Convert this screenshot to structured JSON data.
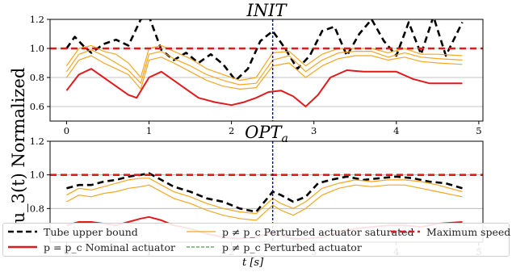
{
  "ylabel": "u_3(t) Normalized",
  "xlabel": "t [s]",
  "legend": [
    {
      "label": "Tube upper bound",
      "color": "#000000",
      "style": "dashed-thick"
    },
    {
      "label": "p = p_c Nominal actuator",
      "color": "#e31a1c",
      "style": "solid-thick"
    },
    {
      "label": "p ≠ p_c Perturbed actuator saturated",
      "color": "#f5a623",
      "style": "solid-thin"
    },
    {
      "label": "p ≠ p_c Perturbed actuator",
      "color": "#1a8a1a",
      "style": "dashed-thin"
    },
    {
      "label": "Maximum speed",
      "color": "#e31a1c",
      "style": "dashed-thick"
    }
  ],
  "chart_data": [
    {
      "type": "line",
      "title": "INIT",
      "xlim": [
        -0.2,
        5.05
      ],
      "ylim": [
        0.5,
        1.2
      ],
      "xticks": [
        0,
        1,
        2,
        3,
        4,
        5
      ],
      "yticks": [
        0.6,
        0.8,
        1.0,
        1.2
      ],
      "grid_y": true,
      "vline_x": 2.5,
      "max_speed": 1.0,
      "series": [
        {
          "name": "Tube upper bound",
          "role": "tube",
          "x": [
            0,
            0.1,
            0.2,
            0.3,
            0.45,
            0.6,
            0.75,
            0.9,
            1.0,
            1.15,
            1.3,
            1.45,
            1.6,
            1.75,
            1.9,
            2.05,
            2.2,
            2.35,
            2.5,
            2.65,
            2.8,
            2.95,
            3.1,
            3.25,
            3.4,
            3.55,
            3.7,
            3.85,
            4.0,
            4.15,
            4.3,
            4.45,
            4.6,
            4.8
          ],
          "y": [
            1.0,
            1.08,
            1.02,
            0.97,
            1.03,
            1.06,
            1.02,
            1.2,
            1.22,
            0.99,
            0.92,
            0.97,
            0.9,
            0.96,
            0.89,
            0.78,
            0.86,
            1.05,
            1.12,
            1.0,
            0.86,
            0.95,
            1.12,
            1.15,
            0.95,
            1.1,
            1.2,
            1.05,
            0.95,
            1.18,
            0.96,
            1.22,
            0.95,
            1.18
          ]
        },
        {
          "name": "p = p_c Nominal actuator",
          "role": "nominal",
          "x": [
            0,
            0.15,
            0.3,
            0.45,
            0.6,
            0.75,
            0.85,
            1.0,
            1.15,
            1.3,
            1.45,
            1.6,
            1.8,
            2.0,
            2.15,
            2.3,
            2.45,
            2.6,
            2.75,
            2.9,
            3.05,
            3.2,
            3.4,
            3.6,
            3.8,
            4.0,
            4.2,
            4.4,
            4.6,
            4.8
          ],
          "y": [
            0.71,
            0.82,
            0.86,
            0.8,
            0.74,
            0.68,
            0.66,
            0.8,
            0.84,
            0.78,
            0.72,
            0.66,
            0.63,
            0.61,
            0.63,
            0.66,
            0.7,
            0.71,
            0.67,
            0.6,
            0.68,
            0.8,
            0.85,
            0.84,
            0.84,
            0.84,
            0.79,
            0.76,
            0.76,
            0.76
          ]
        },
        {
          "name": "Perturbed actuator saturated 1",
          "role": "saturated",
          "x": [
            0,
            0.15,
            0.3,
            0.45,
            0.6,
            0.75,
            0.9,
            1.0,
            1.15,
            1.3,
            1.5,
            1.7,
            1.9,
            2.1,
            2.3,
            2.5,
            2.7,
            2.9,
            3.1,
            3.3,
            3.5,
            3.7,
            3.9,
            4.1,
            4.3,
            4.5,
            4.8
          ],
          "y": [
            0.88,
            1.0,
            1.02,
            0.98,
            0.96,
            0.9,
            0.8,
            1.0,
            1.02,
            0.98,
            0.93,
            0.86,
            0.82,
            0.78,
            0.8,
            0.97,
            0.98,
            0.88,
            0.96,
            1.0,
            1.0,
            1.0,
            0.97,
            1.0,
            0.96,
            0.96,
            0.95
          ]
        },
        {
          "name": "Perturbed actuator saturated 2",
          "role": "saturated",
          "x": [
            0,
            0.15,
            0.3,
            0.45,
            0.6,
            0.75,
            0.9,
            1.0,
            1.15,
            1.3,
            1.5,
            1.7,
            1.9,
            2.1,
            2.3,
            2.5,
            2.7,
            2.9,
            3.1,
            3.3,
            3.5,
            3.7,
            3.9,
            4.1,
            4.3,
            4.5,
            4.8
          ],
          "y": [
            0.84,
            0.96,
            0.99,
            0.95,
            0.9,
            0.85,
            0.76,
            0.96,
            0.98,
            0.93,
            0.88,
            0.82,
            0.78,
            0.75,
            0.76,
            0.92,
            0.95,
            0.84,
            0.92,
            0.97,
            0.98,
            0.98,
            0.94,
            0.97,
            0.94,
            0.93,
            0.92
          ]
        },
        {
          "name": "Perturbed actuator saturated 3",
          "role": "saturated",
          "x": [
            0,
            0.15,
            0.3,
            0.45,
            0.6,
            0.75,
            0.9,
            1.0,
            1.15,
            1.3,
            1.5,
            1.7,
            1.9,
            2.1,
            2.3,
            2.5,
            2.7,
            2.9,
            3.1,
            3.3,
            3.5,
            3.7,
            3.9,
            4.1,
            4.3,
            4.5,
            4.8
          ],
          "y": [
            0.8,
            0.92,
            0.95,
            0.9,
            0.86,
            0.82,
            0.72,
            0.92,
            0.94,
            0.9,
            0.84,
            0.78,
            0.74,
            0.72,
            0.73,
            0.88,
            0.9,
            0.8,
            0.88,
            0.93,
            0.95,
            0.95,
            0.92,
            0.94,
            0.91,
            0.9,
            0.89
          ]
        }
      ]
    },
    {
      "type": "line",
      "title": "OPT_a",
      "xlim": [
        -0.2,
        5.05
      ],
      "ylim": [
        0.6,
        1.2
      ],
      "xticks": [
        0,
        1,
        2,
        3,
        4,
        5
      ],
      "yticks": [
        0.8,
        1.0,
        1.2
      ],
      "grid_y": true,
      "vline_x": 2.5,
      "max_speed": 1.0,
      "series": [
        {
          "name": "Tube upper bound",
          "role": "tube",
          "x": [
            0,
            0.15,
            0.3,
            0.45,
            0.6,
            0.75,
            0.9,
            1.0,
            1.15,
            1.3,
            1.5,
            1.7,
            1.9,
            2.1,
            2.3,
            2.5,
            2.6,
            2.75,
            2.9,
            3.05,
            3.2,
            3.4,
            3.6,
            3.8,
            4.0,
            4.2,
            4.4,
            4.6,
            4.8
          ],
          "y": [
            0.92,
            0.94,
            0.94,
            0.96,
            0.97,
            0.99,
            1.0,
            1.01,
            0.97,
            0.93,
            0.9,
            0.86,
            0.84,
            0.8,
            0.78,
            0.9,
            0.88,
            0.84,
            0.87,
            0.95,
            0.97,
            0.99,
            0.97,
            0.98,
            0.99,
            0.98,
            0.96,
            0.95,
            0.92
          ]
        },
        {
          "name": "p = p_c Nominal actuator",
          "role": "nominal",
          "x": [
            0,
            0.15,
            0.3,
            0.45,
            0.6,
            0.75,
            0.9,
            1.0,
            1.15,
            1.3,
            1.5,
            1.7,
            1.9,
            2.1,
            2.3,
            2.5,
            2.6,
            2.75,
            2.9,
            3.1,
            3.3,
            3.5,
            3.7,
            3.9,
            4.1,
            4.3,
            4.5,
            4.8
          ],
          "y": [
            0.7,
            0.72,
            0.72,
            0.71,
            0.7,
            0.72,
            0.74,
            0.75,
            0.73,
            0.7,
            0.68,
            0.65,
            0.63,
            0.62,
            0.63,
            0.66,
            0.64,
            0.62,
            0.62,
            0.63,
            0.66,
            0.68,
            0.69,
            0.7,
            0.7,
            0.69,
            0.71,
            0.72
          ]
        },
        {
          "name": "Perturbed actuator saturated 1",
          "role": "saturated",
          "x": [
            0,
            0.15,
            0.3,
            0.45,
            0.6,
            0.75,
            0.9,
            1.0,
            1.15,
            1.3,
            1.5,
            1.7,
            1.9,
            2.1,
            2.3,
            2.5,
            2.6,
            2.75,
            2.9,
            3.1,
            3.3,
            3.5,
            3.7,
            3.9,
            4.1,
            4.3,
            4.5,
            4.8
          ],
          "y": [
            0.88,
            0.92,
            0.91,
            0.93,
            0.95,
            0.97,
            0.98,
            0.98,
            0.94,
            0.9,
            0.87,
            0.83,
            0.8,
            0.78,
            0.77,
            0.86,
            0.83,
            0.8,
            0.84,
            0.92,
            0.95,
            0.97,
            0.96,
            0.97,
            0.97,
            0.96,
            0.94,
            0.9
          ]
        },
        {
          "name": "Perturbed actuator saturated 2",
          "role": "saturated",
          "x": [
            0,
            0.15,
            0.3,
            0.45,
            0.6,
            0.75,
            0.9,
            1.0,
            1.15,
            1.3,
            1.5,
            1.7,
            1.9,
            2.1,
            2.3,
            2.5,
            2.6,
            2.75,
            2.9,
            3.1,
            3.3,
            3.5,
            3.7,
            3.9,
            4.1,
            4.3,
            4.5,
            4.8
          ],
          "y": [
            0.84,
            0.88,
            0.87,
            0.89,
            0.9,
            0.92,
            0.93,
            0.94,
            0.9,
            0.86,
            0.83,
            0.79,
            0.76,
            0.74,
            0.73,
            0.82,
            0.79,
            0.76,
            0.8,
            0.88,
            0.92,
            0.94,
            0.93,
            0.94,
            0.94,
            0.92,
            0.9,
            0.87
          ]
        }
      ]
    }
  ]
}
